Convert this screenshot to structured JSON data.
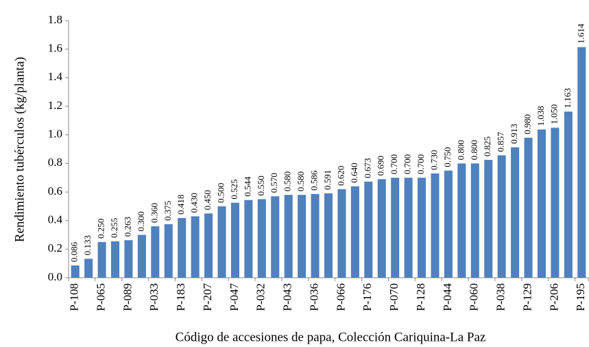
{
  "chart_data": {
    "type": "bar",
    "y_label": "Rendimiento tubérculos (kg/planta)",
    "x_label": "Código de accesiones de papa, Colección Cariquina-La Paz",
    "categories": [
      "P-108",
      null,
      "P-065",
      null,
      "P-089",
      null,
      "P-033",
      null,
      "P-183",
      null,
      "P-207",
      null,
      "P-047",
      null,
      "P-032",
      null,
      "P-043",
      null,
      "P-036",
      null,
      "P-066",
      null,
      "P-176",
      null,
      "P-070",
      null,
      "P-128",
      null,
      "P-044",
      null,
      "P-060",
      null,
      "P-038",
      null,
      "P-129",
      null,
      "P-206",
      null,
      "P-195"
    ],
    "values": [
      0.086,
      0.133,
      0.25,
      0.255,
      0.263,
      0.3,
      0.36,
      0.375,
      0.418,
      0.43,
      0.45,
      0.5,
      0.525,
      0.544,
      0.55,
      0.57,
      0.58,
      0.58,
      0.586,
      0.591,
      0.62,
      0.64,
      0.673,
      0.69,
      0.7,
      0.7,
      0.7,
      0.73,
      0.75,
      0.8,
      0.8,
      0.825,
      0.857,
      0.913,
      0.98,
      1.038,
      1.05,
      1.163,
      1.614
    ],
    "value_labels": [
      "0.086",
      "0.133",
      "0.250",
      "0.255",
      "0.263",
      "0.300",
      "0.360",
      "0.375",
      "0.418",
      "0.430",
      "0.450",
      "0.500",
      "0.525",
      "0.544",
      "0.550",
      "0.570",
      "0.580",
      "0.580",
      "0.586",
      "0.591",
      "0.620",
      "0.640",
      "0.673",
      "0.690",
      "0.700",
      "0.700",
      "0.700",
      "0.730",
      "0.750",
      "0.800",
      "0.800",
      "0.825",
      "0.857",
      "0.913",
      "0.980",
      "1.038",
      "1.050",
      "1.163",
      "1.614"
    ],
    "color": "#4f81bd",
    "ylim": [
      0,
      1.8
    ],
    "yticks": [
      {
        "value": 0,
        "label": "0.0"
      },
      0.2,
      0.4,
      0.6,
      0.8,
      {
        "value": 1,
        "label": "1.0"
      },
      1.2,
      1.4,
      1.6,
      1.8
    ],
    "grid": false
  }
}
